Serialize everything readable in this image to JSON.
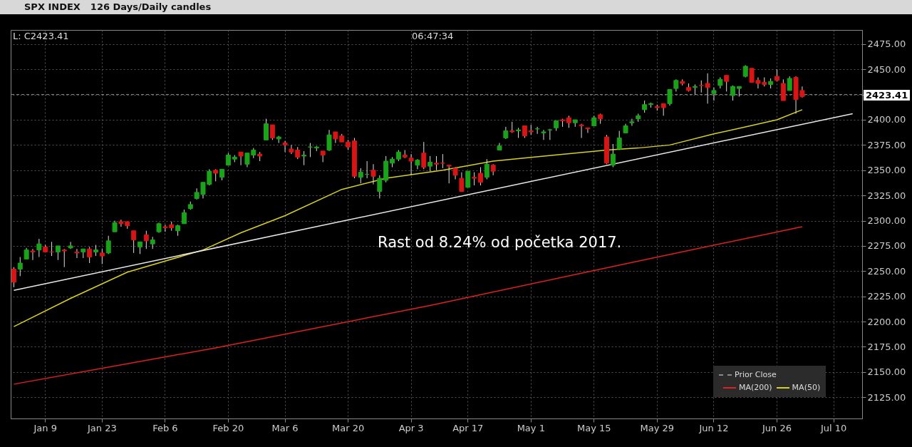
{
  "chart_data": {
    "type": "candlestick",
    "title": "SPX INDEX",
    "subtitle": "126 Days/Daily candles",
    "categories": [
      null,
      null,
      null,
      null,
      null,
      "Jan 9",
      null,
      null,
      null,
      null,
      null,
      null,
      null,
      null,
      "Jan 23",
      null,
      null,
      null,
      null,
      null,
      null,
      null,
      null,
      null,
      "Feb 6",
      null,
      null,
      null,
      null,
      null,
      null,
      null,
      null,
      null,
      "Feb 20",
      null,
      null,
      null,
      null,
      null,
      null,
      null,
      null,
      "Mar 6",
      null,
      null,
      null,
      null,
      null,
      null,
      null,
      null,
      null,
      "Mar 20",
      null,
      null,
      null,
      null,
      null,
      null,
      null,
      null,
      null,
      "Apr 3",
      null,
      null,
      null,
      null,
      null,
      null,
      null,
      null,
      "Apr 17",
      null,
      null,
      null,
      null,
      null,
      null,
      null,
      null,
      null,
      "May 1",
      null,
      null,
      null,
      null,
      null,
      null,
      null,
      null,
      null,
      "May 15",
      null,
      null,
      null,
      null,
      null,
      null,
      null,
      null,
      null,
      "May 29",
      null,
      null,
      null,
      null,
      null,
      null,
      null,
      null,
      "Jun 12",
      null,
      null,
      null,
      null,
      null,
      null,
      null,
      null,
      null,
      "Jun 26",
      null,
      null,
      null,
      null,
      null,
      null,
      null,
      null,
      "Jul 10",
      null,
      null,
      null,
      null
    ],
    "ohlc": [
      [
        2252,
        2254,
        2234,
        2239
      ],
      [
        2252,
        2264,
        2245,
        2258
      ],
      [
        2262,
        2273,
        2262,
        2271
      ],
      [
        2270,
        2272,
        2261,
        2269
      ],
      [
        2271,
        2282,
        2264,
        2277
      ],
      [
        2274,
        2276,
        2269,
        2269
      ],
      [
        2269,
        2279,
        2265,
        2269
      ],
      [
        2269,
        2275,
        2261,
        2275
      ],
      [
        2271,
        2272,
        2254,
        2270
      ],
      [
        2273,
        2279,
        2272,
        2275
      ],
      [
        2269,
        2272,
        2263,
        2268
      ],
      [
        2269,
        2272,
        2263,
        2272
      ],
      [
        2272,
        2274,
        2258,
        2264
      ],
      [
        2269,
        2276,
        2265,
        2271
      ],
      [
        2268,
        2272,
        2257,
        2265
      ],
      [
        2268,
        2285,
        2267,
        2280
      ],
      [
        2289,
        2300,
        2289,
        2298
      ],
      [
        2299,
        2301,
        2294,
        2297
      ],
      [
        2299,
        2299,
        2292,
        2295
      ],
      [
        2290,
        2290,
        2268,
        2281
      ],
      [
        2274,
        2279,
        2267,
        2279
      ],
      [
        2286,
        2290,
        2272,
        2280
      ],
      [
        2277,
        2284,
        2272,
        2281
      ],
      [
        2289,
        2298,
        2288,
        2297
      ],
      [
        2294,
        2296,
        2289,
        2293
      ],
      [
        2296,
        2299,
        2290,
        2293
      ],
      [
        2290,
        2296,
        2285,
        2295
      ],
      [
        2297,
        2311,
        2297,
        2308
      ],
      [
        2312,
        2319,
        2311,
        2316
      ],
      [
        2322,
        2332,
        2321,
        2328
      ],
      [
        2326,
        2338,
        2322,
        2338
      ],
      [
        2336,
        2351,
        2335,
        2349
      ],
      [
        2350,
        2351,
        2339,
        2347
      ],
      [
        2343,
        2351,
        2340,
        2351
      ],
      [
        2355,
        2367,
        2355,
        2365
      ],
      [
        2361,
        2365,
        2358,
        2363
      ],
      [
        2368,
        2368,
        2355,
        2364
      ],
      [
        2356,
        2367,
        2353,
        2367
      ],
      [
        2365,
        2372,
        2362,
        2370
      ],
      [
        2366,
        2368,
        2359,
        2364
      ],
      [
        2380,
        2401,
        2380,
        2396
      ],
      [
        2395,
        2395,
        2380,
        2382
      ],
      [
        2381,
        2384,
        2377,
        2383
      ],
      [
        2377,
        2379,
        2368,
        2375
      ],
      [
        2371,
        2375,
        2366,
        2368
      ],
      [
        2370,
        2373,
        2361,
        2363
      ],
      [
        2364,
        2369,
        2355,
        2365
      ],
      [
        2373,
        2377,
        2363,
        2373
      ],
      [
        2372,
        2374,
        2369,
        2373
      ],
      [
        2369,
        2369,
        2358,
        2365
      ],
      [
        2370,
        2390,
        2369,
        2385
      ],
      [
        2388,
        2388,
        2377,
        2381
      ],
      [
        2384,
        2386,
        2378,
        2378
      ],
      [
        2378,
        2380,
        2370,
        2373
      ],
      [
        2379,
        2382,
        2342,
        2344
      ],
      [
        2343,
        2352,
        2337,
        2348
      ],
      [
        2346,
        2359,
        2342,
        2346
      ],
      [
        2350,
        2356,
        2336,
        2344
      ],
      [
        2329,
        2345,
        2322,
        2342
      ],
      [
        2340,
        2364,
        2338,
        2359
      ],
      [
        2357,
        2363,
        2353,
        2361
      ],
      [
        2361,
        2370,
        2359,
        2368
      ],
      [
        2365,
        2370,
        2362,
        2363
      ],
      [
        2362,
        2366,
        2345,
        2359
      ],
      [
        2355,
        2361,
        2351,
        2360
      ],
      [
        2367,
        2378,
        2351,
        2353
      ],
      [
        2354,
        2364,
        2349,
        2358
      ],
      [
        2357,
        2364,
        2350,
        2356
      ],
      [
        2357,
        2366,
        2352,
        2357
      ],
      [
        2355,
        2355,
        2337,
        2354
      ],
      [
        2352,
        2353,
        2341,
        2345
      ],
      [
        2342,
        2348,
        2329,
        2329
      ],
      [
        2333,
        2349,
        2333,
        2349
      ],
      [
        2343,
        2348,
        2335,
        2342
      ],
      [
        2347,
        2353,
        2335,
        2338
      ],
      [
        2343,
        2361,
        2341,
        2356
      ],
      [
        2355,
        2356,
        2345,
        2349
      ],
      [
        2370,
        2377,
        2370,
        2374
      ],
      [
        2382,
        2393,
        2381,
        2389
      ],
      [
        2389,
        2398,
        2387,
        2388
      ],
      [
        2390,
        2392,
        2382,
        2389
      ],
      [
        2394,
        2394,
        2382,
        2384
      ],
      [
        2389,
        2395,
        2385,
        2388
      ],
      [
        2391,
        2393,
        2386,
        2391
      ],
      [
        2387,
        2390,
        2380,
        2388
      ],
      [
        2390,
        2391,
        2380,
        2390
      ],
      [
        2392,
        2399,
        2389,
        2399
      ],
      [
        2400,
        2401,
        2393,
        2399
      ],
      [
        2402,
        2404,
        2392,
        2397
      ],
      [
        2397,
        2400,
        2393,
        2400
      ],
      [
        2395,
        2396,
        2382,
        2394
      ],
      [
        2392,
        2392,
        2387,
        2391
      ],
      [
        2394,
        2404,
        2394,
        2402
      ],
      [
        2405,
        2406,
        2396,
        2401
      ],
      [
        2383,
        2385,
        2356,
        2357
      ],
      [
        2355,
        2376,
        2353,
        2366
      ],
      [
        2371,
        2389,
        2370,
        2382
      ],
      [
        2387,
        2396,
        2387,
        2394
      ],
      [
        2397,
        2401,
        2394,
        2398
      ],
      [
        2401,
        2406,
        2398,
        2404
      ],
      [
        2410,
        2419,
        2407,
        2415
      ],
      [
        2415,
        2417,
        2412,
        2416
      ],
      [
        2412,
        2415,
        2409,
        2413
      ],
      [
        2416,
        2416,
        2404,
        2412
      ],
      [
        2416,
        2430,
        2414,
        2430
      ],
      [
        2431,
        2440,
        2428,
        2439
      ],
      [
        2438,
        2440,
        2434,
        2436
      ],
      [
        2432,
        2436,
        2428,
        2429
      ],
      [
        2432,
        2435,
        2425,
        2433
      ],
      [
        2434,
        2439,
        2427,
        2434
      ],
      [
        2436,
        2446,
        2416,
        2432
      ],
      [
        2426,
        2432,
        2419,
        2429
      ],
      [
        2434,
        2442,
        2431,
        2440
      ],
      [
        2444,
        2444,
        2428,
        2438
      ],
      [
        2424,
        2434,
        2419,
        2433
      ],
      [
        2431,
        2433,
        2423,
        2433
      ],
      [
        2443,
        2454,
        2442,
        2453
      ],
      [
        2451,
        2451,
        2437,
        2437
      ],
      [
        2439,
        2442,
        2431,
        2436
      ],
      [
        2437,
        2442,
        2433,
        2435
      ],
      [
        2435,
        2441,
        2431,
        2438
      ],
      [
        2443,
        2450,
        2438,
        2439
      ],
      [
        2436,
        2440,
        2419,
        2419
      ],
      [
        2429,
        2443,
        2429,
        2441
      ],
      [
        2442,
        2443,
        2406,
        2420
      ],
      [
        2429,
        2433,
        2422,
        2423
      ],
      null,
      null,
      null,
      null,
      null,
      null,
      null,
      null,
      null
    ],
    "colors": [
      "#d81414",
      "#19a319",
      "#19a319",
      "#d81414",
      "#19a319",
      "#d81414",
      "#d81414",
      "#19a319",
      "#d81414",
      "#19a319",
      "#d81414",
      "#19a319",
      "#d81414",
      "#19a319",
      "#d81414",
      "#19a319",
      "#19a319",
      "#d81414",
      "#d81414",
      "#d81414",
      "#19a319",
      "#d81414",
      "#19a319",
      "#19a319",
      "#d81414",
      "#d81414",
      "#19a319",
      "#19a319",
      "#19a319",
      "#19a319",
      "#19a319",
      "#19a319",
      "#d81414",
      "#19a319",
      "#19a319",
      "#19a319",
      "#d81414",
      "#19a319",
      "#19a319",
      "#d81414",
      "#19a319",
      "#d81414",
      "#19a319",
      "#d81414",
      "#d81414",
      "#d81414",
      "#19a319",
      "#19a319",
      "#19a319",
      "#d81414",
      "#19a319",
      "#d81414",
      "#d81414",
      "#d81414",
      "#d81414",
      "#19a319",
      "#19a319",
      "#d81414",
      "#19a319",
      "#19a319",
      "#19a319",
      "#19a319",
      "#d81414",
      "#d81414",
      "#19a319",
      "#d81414",
      "#19a319",
      "#d81414",
      "#d81414",
      "#d81414",
      "#d81414",
      "#d81414",
      "#19a319",
      "#d81414",
      "#d81414",
      "#19a319",
      "#d81414",
      "#19a319",
      "#19a319",
      "#d81414",
      "#19a319",
      "#d81414",
      "#d81414",
      "#19a319",
      "#19a319",
      "#19a319",
      "#19a319",
      "#d81414",
      "#d81414",
      "#19a319",
      "#d81414",
      "#d81414",
      "#19a319",
      "#d81414",
      "#d81414",
      "#19a319",
      "#19a319",
      "#19a319",
      "#19a319",
      "#19a319",
      "#19a319",
      "#19a319",
      "#d81414",
      "#d81414",
      "#19a319",
      "#19a319",
      "#d81414",
      "#d81414",
      "#19a319",
      "#d81414",
      "#d81414",
      "#19a319",
      "#19a319",
      "#d81414",
      "#19a319",
      "#19a319",
      "#19a319",
      "#d81414",
      "#d81414",
      "#d81414",
      "#19a319",
      "#d81414",
      "#d81414",
      "#19a319",
      "#d81414",
      "#d81414",
      null,
      null,
      null,
      null,
      null,
      null,
      null,
      null,
      null
    ],
    "series": [
      {
        "type": "line",
        "name": "MA(200)",
        "color": "#e02020",
        "values": [
          2138,
          null,
          null,
          null,
          null,
          null,
          null,
          null,
          null,
          null,
          null,
          null,
          null,
          null,
          null,
          null,
          null,
          null,
          null,
          null,
          null,
          null,
          null,
          null,
          null,
          null,
          null,
          null,
          null,
          null,
          null,
          null,
          2174,
          null,
          null,
          null,
          null,
          null,
          null,
          null,
          null,
          null,
          null,
          null,
          null,
          null,
          null,
          null,
          null,
          null,
          null,
          null,
          null,
          null,
          null,
          null,
          null,
          null,
          null,
          null,
          null,
          null,
          null,
          null,
          null,
          null,
          2216,
          null,
          null,
          null,
          null,
          null,
          null,
          null,
          null,
          null,
          null,
          null,
          null,
          null,
          null,
          null,
          null,
          null,
          null,
          null,
          null,
          null,
          null,
          null,
          null,
          null,
          null,
          null,
          null,
          null,
          null,
          null,
          null,
          2260,
          null,
          null,
          null,
          null,
          null,
          null,
          null,
          null,
          null,
          null,
          null,
          null,
          null,
          null,
          null,
          null,
          null,
          null,
          null,
          null,
          null,
          null,
          null,
          null,
          null,
          2294,
          null,
          null,
          null,
          null,
          null,
          null,
          null,
          null,
          null
        ]
      },
      {
        "type": "line",
        "name": "MA(50)",
        "color": "#d8d020",
        "values": [
          2195,
          null,
          null,
          null,
          null,
          null,
          null,
          null,
          null,
          2223,
          null,
          null,
          null,
          null,
          null,
          null,
          null,
          null,
          2249,
          null,
          null,
          null,
          null,
          null,
          null,
          null,
          null,
          null,
          null,
          null,
          2271,
          null,
          null,
          null,
          null,
          null,
          2288,
          null,
          null,
          null,
          null,
          null,
          null,
          2305,
          null,
          null,
          null,
          null,
          null,
          null,
          null,
          null,
          2331,
          null,
          null,
          null,
          null,
          null,
          null,
          2342,
          null,
          null,
          null,
          null,
          null,
          null,
          null,
          null,
          2350,
          null,
          null,
          null,
          null,
          null,
          null,
          null,
          2359,
          null,
          null,
          null,
          null,
          null,
          null,
          null,
          2364,
          null,
          null,
          null,
          null,
          null,
          null,
          null,
          null,
          null,
          2370,
          null,
          null,
          null,
          null,
          2372,
          null,
          null,
          null,
          null,
          2375,
          null,
          null,
          null,
          null,
          null,
          null,
          2386,
          null,
          null,
          null,
          null,
          2393,
          null,
          null,
          null,
          null,
          2400,
          null,
          null,
          null,
          2410,
          null,
          null,
          null,
          null,
          null,
          null,
          null,
          null,
          null
        ]
      },
      {
        "type": "line",
        "color": "#e8e8e8",
        "values": [
          2231,
          null,
          null,
          null,
          null,
          null,
          null,
          null,
          null,
          null,
          null,
          null,
          null,
          null,
          null,
          null,
          null,
          null,
          null,
          null,
          null,
          null,
          null,
          null,
          null,
          null,
          null,
          null,
          null,
          null,
          null,
          null,
          null,
          null,
          null,
          null,
          null,
          null,
          null,
          null,
          null,
          null,
          null,
          null,
          null,
          null,
          null,
          null,
          null,
          null,
          null,
          null,
          null,
          null,
          null,
          null,
          null,
          null,
          null,
          null,
          null,
          null,
          null,
          null,
          null,
          null,
          null,
          null,
          null,
          null,
          null,
          null,
          null,
          null,
          null,
          null,
          null,
          null,
          null,
          null,
          null,
          null,
          null,
          null,
          null,
          null,
          null,
          null,
          null,
          null,
          null,
          null,
          null,
          null,
          null,
          null,
          null,
          null,
          null,
          null,
          null,
          null,
          null,
          null,
          null,
          null,
          null,
          null,
          null,
          null,
          null,
          null,
          null,
          null,
          null,
          null,
          null,
          null,
          null,
          null,
          null,
          null,
          null,
          null,
          null,
          null,
          null,
          null,
          null,
          null,
          null,
          null,
          null,
          2406,
          null
        ]
      }
    ],
    "ref_lines": [
      {
        "axis": "y",
        "value": 2425,
        "label": "Prior Close",
        "color": "#8a8a8a",
        "line_style": "dashed"
      }
    ],
    "ylim": [
      2104,
      2489
    ],
    "yticks": [
      {
        "value": 2125,
        "label": "2125.00"
      },
      {
        "value": 2150,
        "label": "2150.00"
      },
      {
        "value": 2175,
        "label": "2175.00"
      },
      {
        "value": 2200,
        "label": "2200.00"
      },
      {
        "value": 2225,
        "label": "2225.00"
      },
      {
        "value": 2250,
        "label": "2250.00"
      },
      {
        "value": 2275,
        "label": "2275.00"
      },
      {
        "value": 2300,
        "label": "2300.00"
      },
      {
        "value": 2325,
        "label": "2325.00"
      },
      {
        "value": 2350,
        "label": "2350.00"
      },
      {
        "value": 2375,
        "label": "2375.00"
      },
      {
        "value": 2400,
        "label": "2400.00"
      },
      {
        "value": 2425,
        "label": null
      },
      {
        "value": 2450,
        "label": "2450.00"
      },
      {
        "value": 2475,
        "label": "2475.00"
      }
    ],
    "grid": true,
    "legend": "bottom right",
    "annotations": [
      "Rast od 8.24% od početka 2017.",
      "L: C2423.41",
      "06:47:34",
      "2423.41"
    ]
  }
}
